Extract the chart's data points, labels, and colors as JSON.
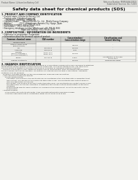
{
  "bg_color": "#f2f2ee",
  "header_top_left": "Product Name: Lithium Ion Battery Cell",
  "header_top_right1": "Reference Number: MSMLG64A-00810",
  "header_top_right2": "Established / Revision: Dec.7.2010",
  "main_title": "Safety data sheet for chemical products (SDS)",
  "section1_title": "1. PRODUCT AND COMPANY IDENTIFICATION",
  "section1_lines": [
    "  • Product name: Lithium Ion Battery Cell",
    "  • Product code: Cylindrical-type cell",
    "       SR18650U, SR18650L, SR18650A",
    "  • Company name:      Bansyo Electric Co., Ltd.  Mobile Energy Company",
    "  • Address:            202-1  Kamiatsuan, Sumoto-City, Hyogo, Japan",
    "  • Telephone number:  +81-(799)-26-4111",
    "  • Fax number:  +81-1799-26-4125",
    "  • Emergency telephone number (Afterhours) +81-799-26-3662",
    "                                (Night and holiday) +81-799-26-4125"
  ],
  "section2_title": "2. COMPOSITION / INFORMATION ON INGREDIENTS",
  "section2_sub": "  • Substance or preparation: Preparation",
  "section2_sub2": "  • Information about the chemical nature of product:",
  "table_col_headers": [
    "Common chemical name",
    "CAS number",
    "Concentration /\nConcentration range",
    "Classification and\nhazard labeling"
  ],
  "table_subheader": "General name",
  "table_rows": [
    [
      "Lithium cobalt oxide\n(LiMn2Co6PO4)",
      "-",
      "30-60%",
      "-"
    ],
    [
      "Iron",
      "7439-89-6",
      "10-20%",
      "-"
    ],
    [
      "Aluminum",
      "7429-90-5",
      "2-6%",
      "-"
    ],
    [
      "Graphite\n(Mold in graphite-l)\n(All-flock graphite-l)",
      "77682-42-5\n77682-44-3",
      "10-20%",
      "-"
    ],
    [
      "Copper",
      "7440-50-8",
      "5-15%",
      "Sensitization of the skin\ngroup No.2"
    ],
    [
      "Organic electrolyte",
      "-",
      "10-20%",
      "Inflammable liquid"
    ]
  ],
  "section3_title": "3. HAZARDS IDENTIFICATION",
  "section3_para1": [
    "For the battery cell, chemical substances are stored in a hermetically sealed metal case, designed to withstand",
    "temperatures during chemical-electrolysis during normal use. As a result, during normal use, there is no",
    "physical danger of ignition or explosion and there is no danger of hazardous materials leakage.",
    "   However, if exposed to a fire, added mechanical shocks, decomposed, when electrolyte leaks by these,",
    "the gas release vent can be operated. The battery cell case will be breached or fire-catches. Hazardous",
    "materials may be released.",
    "   Moreover, if heated strongly by the surrounding fire, some gas may be emitted."
  ],
  "section3_bullet1_title": "  • Most important hazard and effects:",
  "section3_bullet1_lines": [
    "       Human health effects:",
    "          Inhalation: The release of the electrolyte has an anesthesia action and stimulates a respiratory tract.",
    "          Skin contact: The release of the electrolyte stimulates a skin. The electrolyte skin contact causes a",
    "          sore and stimulation on the skin.",
    "          Eye contact: The release of the electrolyte stimulates eyes. The electrolyte eye contact causes a sore",
    "          and stimulation on the eye. Especially, a substance that causes a strong inflammation of the eye is",
    "          contained.",
    "          Environmental effects: Since a battery cell remains in the environment, do not throw out it into the",
    "          environment."
  ],
  "section3_bullet2_title": "  • Specific hazards:",
  "section3_bullet2_lines": [
    "       If the electrolyte contacts with water, it will generate detrimental hydrogen fluoride.",
    "       Since the used electrolyte is inflammable liquid, do not bring close to fire."
  ]
}
